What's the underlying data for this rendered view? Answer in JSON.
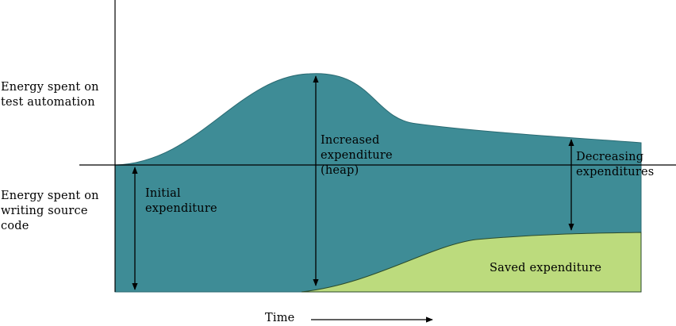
{
  "diagram": {
    "colors": {
      "teal_area": "#3e8c96",
      "saved_area": "#bcdb7d",
      "lines": "#000000",
      "background": "#ffffff"
    },
    "labels": {
      "y_upper": "Energy spent on\ntest automation",
      "y_lower": "Energy spent on\nwriting source\ncode",
      "initial": "Initial\nexpenditure",
      "increased": "Increased\nexpenditure\n(heap)",
      "decreasing": "Decreasing\nexpenditures",
      "saved": "Saved expenditure",
      "x_axis": "Time"
    }
  }
}
